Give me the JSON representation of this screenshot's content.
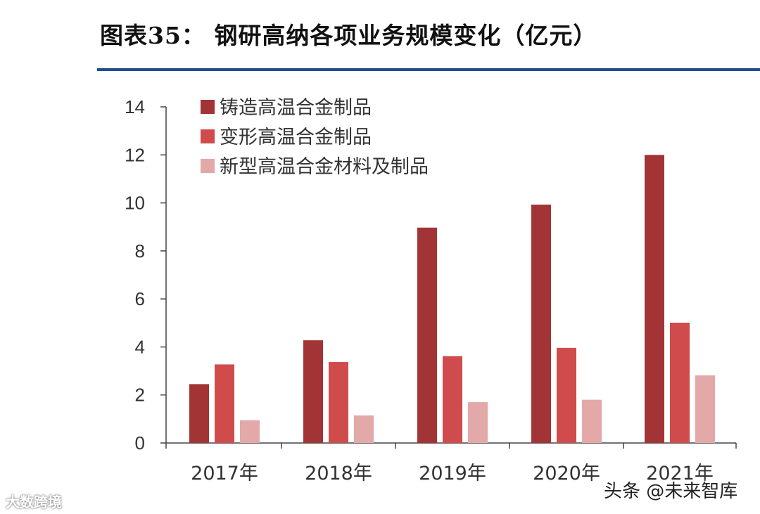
{
  "title": "图表35：   钢研高纳各项业务规模变化（亿元）",
  "colors": {
    "rule": "#1f4e8c",
    "series": [
      "#a23436",
      "#d04b4c",
      "#e2a9a8"
    ],
    "axis": "#444444",
    "text": "#333333"
  },
  "chart_data": {
    "type": "bar",
    "categories": [
      "2017年",
      "2018年",
      "2019年",
      "2020年",
      "2021年"
    ],
    "series": [
      {
        "name": "铸造高温合金制品",
        "values": [
          2.45,
          4.28,
          8.97,
          9.93,
          12.0
        ]
      },
      {
        "name": "变形高温合金制品",
        "values": [
          3.27,
          3.37,
          3.62,
          3.96,
          5.01
        ]
      },
      {
        "name": "新型高温合金材料及制品",
        "values": [
          0.95,
          1.15,
          1.7,
          1.8,
          2.82
        ]
      }
    ],
    "xlabel": "",
    "ylabel": "",
    "ylim": [
      0,
      14
    ],
    "yticks": [
      "0",
      "2",
      "4",
      "6",
      "8",
      "10",
      "12",
      "14"
    ],
    "grid": false,
    "legend_position": "top-left"
  },
  "watermarks": {
    "left": "大数跨境",
    "right": "头条 @未来智库"
  }
}
